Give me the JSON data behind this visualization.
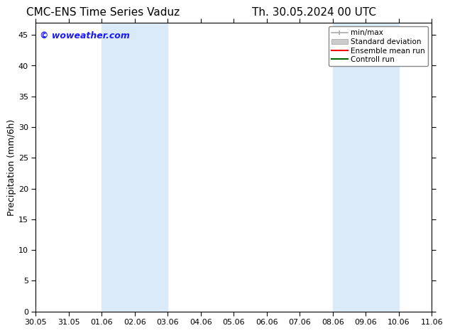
{
  "title_left": "CMC-ENS Time Series Vaduz",
  "title_right": "Th. 30.05.2024 00 UTC",
  "ylabel": "Precipitation (mm/6h)",
  "watermark": "© woweather.com",
  "ylim": [
    0,
    47
  ],
  "yticks": [
    0,
    5,
    10,
    15,
    20,
    25,
    30,
    35,
    40,
    45
  ],
  "xtick_labels": [
    "30.05",
    "31.05",
    "01.06",
    "02.06",
    "03.06",
    "04.06",
    "05.06",
    "06.06",
    "07.06",
    "08.06",
    "09.06",
    "10.06",
    "11.06"
  ],
  "xtick_positions": [
    0,
    1,
    2,
    3,
    4,
    5,
    6,
    7,
    8,
    9,
    10,
    11,
    12
  ],
  "shaded_bands": [
    {
      "x_start": 2,
      "x_end": 4
    },
    {
      "x_start": 9,
      "x_end": 11
    }
  ],
  "shaded_color": "#daeaf8",
  "background_color": "#ffffff",
  "plot_bg_color": "#ffffff",
  "legend_items": [
    {
      "label": "min/max",
      "color": "#aaaaaa",
      "style": "line_with_caps"
    },
    {
      "label": "Standard deviation",
      "color": "#cccccc",
      "style": "filled_rect"
    },
    {
      "label": "Ensemble mean run",
      "color": "#ff0000",
      "style": "line"
    },
    {
      "label": "Controll run",
      "color": "#006400",
      "style": "line"
    }
  ],
  "title_fontsize": 11,
  "axis_fontsize": 9,
  "tick_fontsize": 8,
  "watermark_color": "#1a1aff",
  "watermark_fontsize": 9
}
